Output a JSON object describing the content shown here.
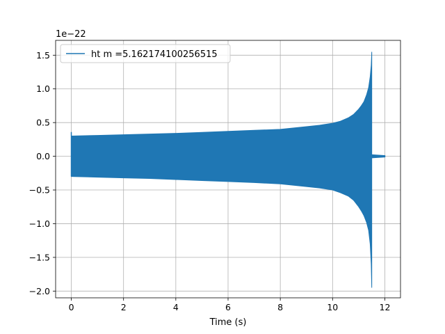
{
  "chart_data": {
    "type": "line",
    "title": "",
    "xlabel": "Time (s)",
    "ylabel": "",
    "offset_label": "1e−22",
    "xlim": [
      -0.6,
      12.6
    ],
    "ylim": [
      -2.1,
      1.72
    ],
    "grid": true,
    "legend_position": "top-left",
    "x_ticks": [
      0,
      2,
      4,
      6,
      8,
      10,
      12
    ],
    "x_tick_labels": [
      "0",
      "2",
      "4",
      "6",
      "8",
      "10",
      "12"
    ],
    "y_ticks": [
      -2.0,
      -1.5,
      -1.0,
      -0.5,
      0.0,
      0.5,
      1.0,
      1.5
    ],
    "y_tick_labels": [
      "−2.0",
      "−1.5",
      "−1.0",
      "−0.5",
      "0.0",
      "0.5",
      "1.0",
      "1.5"
    ],
    "series": [
      {
        "name": "ht m =5.162174100256515",
        "color": "#1f77b4",
        "x": [
          0.0,
          1.0,
          2.0,
          3.0,
          4.0,
          5.0,
          6.0,
          7.0,
          8.0,
          9.0,
          9.5,
          10.0,
          10.3,
          10.6,
          10.8,
          11.0,
          11.1,
          11.2,
          11.3,
          11.38,
          11.44,
          11.48,
          11.5
        ],
        "upper": [
          0.3,
          0.31,
          0.32,
          0.33,
          0.34,
          0.355,
          0.37,
          0.385,
          0.4,
          0.44,
          0.46,
          0.49,
          0.52,
          0.57,
          0.62,
          0.7,
          0.75,
          0.81,
          0.91,
          1.02,
          1.18,
          1.35,
          1.55
        ],
        "lower": [
          -0.3,
          -0.31,
          -0.32,
          -0.33,
          -0.345,
          -0.36,
          -0.375,
          -0.39,
          -0.41,
          -0.45,
          -0.47,
          -0.5,
          -0.54,
          -0.59,
          -0.65,
          -0.75,
          -0.81,
          -0.88,
          -0.98,
          -1.1,
          -1.3,
          -1.6,
          -1.95
        ],
        "ringdown": {
          "x_start": 11.52,
          "x_end": 12.0,
          "amplitude": 0.02
        }
      }
    ]
  }
}
